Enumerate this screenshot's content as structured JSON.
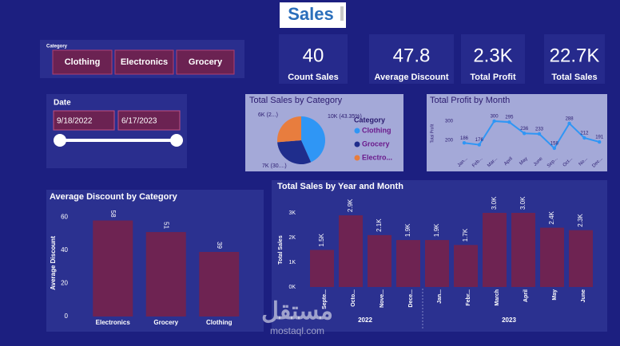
{
  "title": "Sales",
  "category_slicer": {
    "label": "Category",
    "options": [
      "Clothing",
      "Electronics",
      "Grocery"
    ]
  },
  "cards": [
    {
      "value": "40",
      "label": "Count Sales"
    },
    {
      "value": "47.8",
      "label": "Average Discount"
    },
    {
      "value": "2.3K",
      "label": "Total Profit"
    },
    {
      "value": "22.7K",
      "label": "Total Sales"
    }
  ],
  "date_slicer": {
    "label": "Date",
    "start": "9/18/2022",
    "end": "6/17/2023"
  },
  "watermark": [
    "مستقل",
    "mostaql.com"
  ],
  "chart_data": [
    {
      "type": "pie",
      "title": "Total Sales by Category",
      "legend_title": "Category",
      "series": [
        {
          "name": "Clothing",
          "color": "#2f96f5",
          "values": [
            9840
          ],
          "value_labels": [
            "10K (43.35%)"
          ]
        },
        {
          "name": "Grocery",
          "color": "#1f2d8c",
          "values": [
            6900
          ],
          "value_labels": [
            "7K (30....)"
          ]
        },
        {
          "name": "Electro...",
          "color": "#e87d3e",
          "values": [
            5960
          ],
          "value_labels": [
            "6K (2...)"
          ]
        }
      ]
    },
    {
      "type": "line",
      "title": "Total Profit by Month",
      "ylabel": "Total Profit",
      "categories": [
        "Jan...",
        "Feb...",
        "Mar...",
        "April",
        "May",
        "June",
        "Sep...",
        "Oct...",
        "No...",
        "Dec..."
      ],
      "values": [
        186,
        176,
        300,
        295,
        236,
        233,
        158,
        288,
        212,
        191
      ],
      "color": "#2f96f5",
      "ylim": [
        120,
        350
      ],
      "yticks": [
        200,
        300
      ]
    },
    {
      "type": "bar",
      "title": "Average Discount by Category",
      "ylabel": "Average Discount",
      "categories": [
        "Electronics",
        "Grocery",
        "Clothing"
      ],
      "values": [
        58,
        51,
        39
      ],
      "color": "#6e2352",
      "ylim": [
        0,
        65
      ],
      "yticks": [
        0,
        20,
        40,
        60
      ]
    },
    {
      "type": "grouped-bar",
      "title": "Total Sales by Year and Month",
      "ylabel": "Total Sales",
      "groups": [
        {
          "name": "2022",
          "categories": [
            "Septe...",
            "Octo...",
            "Nove...",
            "Dece..."
          ]
        },
        {
          "name": "2023",
          "categories": [
            "Jan...",
            "Febr...",
            "March",
            "April",
            "May",
            "June"
          ]
        }
      ],
      "values": [
        1500,
        2900,
        2100,
        1900,
        1900,
        1700,
        3000,
        3000,
        2400,
        2300
      ],
      "value_labels": [
        "1.5K",
        "2.9K",
        "2.1K",
        "1.9K",
        "1.9K",
        "1.7K",
        "3.0K",
        "3.0K",
        "2.4K",
        "2.3K"
      ],
      "color": "#6e2352",
      "ylim": [
        0,
        3000
      ],
      "yticks": [
        {
          "value": 0,
          "label": "0K"
        },
        {
          "value": 1000,
          "label": "1K"
        },
        {
          "value": 2000,
          "label": "2K"
        },
        {
          "value": 3000,
          "label": "3K"
        }
      ]
    }
  ]
}
